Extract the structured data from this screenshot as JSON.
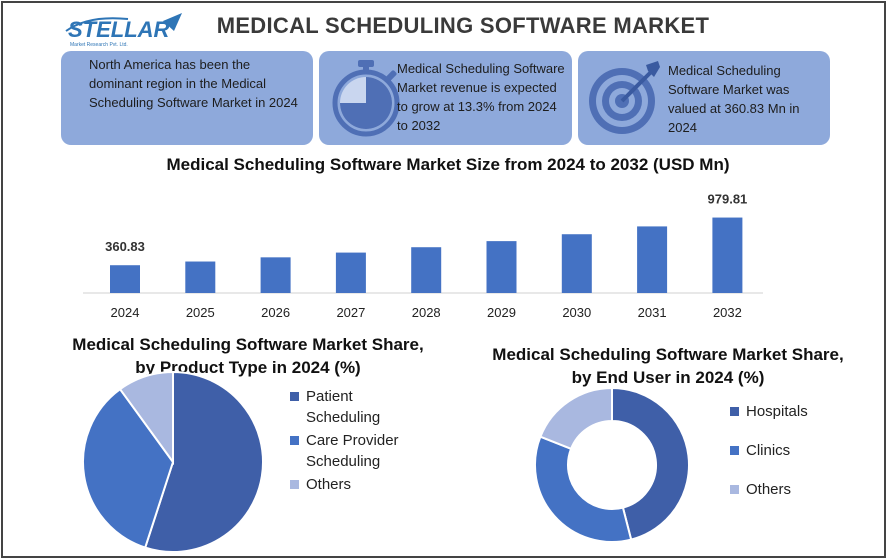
{
  "logo": {
    "name": "STELLAR",
    "tagline": "Market Research Pvt. Ltd."
  },
  "header": {
    "title": "MEDICAL SCHEDULING SOFTWARE MARKET"
  },
  "cards": [
    {
      "text": "North America has been the dominant region in the Medical Scheduling Software Market in 2024",
      "icon": ""
    },
    {
      "text": "Medical Scheduling Software Market revenue is expected to grow at 13.3% from 2024 to 2032",
      "icon": "stopwatch-icon"
    },
    {
      "text": "Medical Scheduling Software Market was valued at 360.83 Mn in 2024",
      "icon": "target-icon"
    }
  ],
  "colors": {
    "bar": "#4472c4",
    "card": "#8ea9db",
    "dark_blue": "#3f5fa8",
    "mid_blue": "#4472c4",
    "light_blue": "#a9b8e0"
  },
  "chart_data": [
    {
      "type": "bar",
      "title": "Medical Scheduling Software Market Size from 2024 to 2032 (USD Mn)",
      "categories": [
        "2024",
        "2025",
        "2026",
        "2027",
        "2028",
        "2029",
        "2030",
        "2031",
        "2032"
      ],
      "values": [
        360.83,
        408.8,
        463.2,
        524.8,
        594.6,
        673.7,
        763.3,
        864.8,
        979.81
      ],
      "data_labels": [
        "360.83",
        "",
        "",
        "",
        "",
        "",
        "",
        "",
        "979.81"
      ],
      "ylim": [
        0,
        1000
      ],
      "grid": false
    },
    {
      "type": "pie",
      "title": "Medical Scheduling Software Market Share, by Product Type in 2024 (%)",
      "labels": [
        "Patient Scheduling",
        "Care Provider Scheduling",
        "Others"
      ],
      "values": [
        55,
        35,
        10
      ],
      "colors": [
        "#3f5fa8",
        "#4472c4",
        "#a9b8e0"
      ],
      "legend": "right"
    },
    {
      "type": "pie",
      "title": "Medical Scheduling Software Market Share, by End User in 2024 (%)",
      "labels": [
        "Hospitals",
        "Clinics",
        "Others"
      ],
      "values": [
        46,
        35,
        19
      ],
      "colors": [
        "#3f5fa8",
        "#4472c4",
        "#a9b8e0"
      ],
      "legend": "right"
    }
  ]
}
